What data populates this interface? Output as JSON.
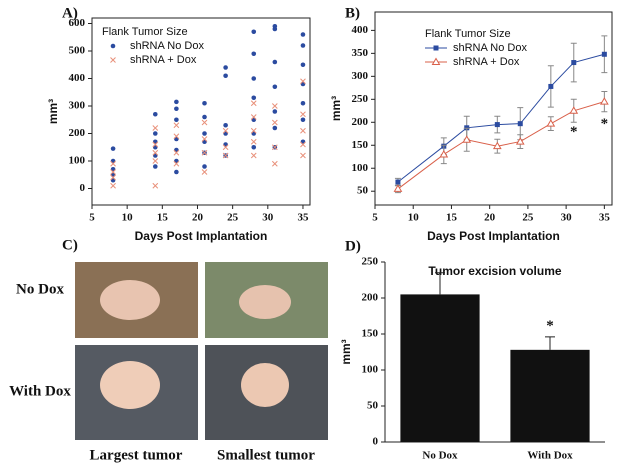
{
  "chart_data": [
    {
      "type": "scatter",
      "label": "A)",
      "xlabel": "Days Post Implantation",
      "ylabel": "mm³",
      "xlim": [
        5,
        36
      ],
      "xticks": [
        5,
        10,
        15,
        20,
        25,
        30,
        35
      ],
      "ylim": [
        -60,
        620
      ],
      "yticks": [
        0,
        100,
        200,
        300,
        400,
        500,
        600
      ],
      "legend": "upper left",
      "legend_title": "Flank Tumor Size",
      "series": [
        {
          "name": "shRNA No Dox",
          "color": "#2b4ba0",
          "marker": "circle",
          "x": [
            8,
            8,
            8,
            8,
            8,
            14,
            14,
            14,
            14,
            14,
            14,
            17,
            17,
            17,
            17,
            17,
            17,
            17,
            21,
            21,
            21,
            21,
            21,
            21,
            24,
            24,
            24,
            24,
            24,
            24,
            28,
            28,
            28,
            28,
            28,
            28,
            28,
            31,
            31,
            31,
            31,
            31,
            31,
            31,
            35,
            35,
            35,
            35,
            35,
            35,
            35
          ],
          "values": [
            145,
            100,
            70,
            50,
            30,
            270,
            200,
            170,
            150,
            120,
            80,
            315,
            290,
            250,
            180,
            140,
            100,
            60,
            310,
            260,
            200,
            170,
            130,
            80,
            440,
            410,
            230,
            200,
            160,
            120,
            570,
            490,
            400,
            330,
            250,
            200,
            150,
            590,
            580,
            460,
            370,
            280,
            220,
            150,
            560,
            520,
            450,
            380,
            310,
            250,
            170
          ]
        },
        {
          "name": "shRNA + Dox",
          "color": "#e8907a",
          "marker": "x",
          "x": [
            8,
            8,
            8,
            8,
            14,
            14,
            14,
            14,
            14,
            17,
            17,
            17,
            17,
            21,
            21,
            21,
            21,
            24,
            24,
            24,
            28,
            28,
            28,
            28,
            28,
            31,
            31,
            31,
            31,
            35,
            35,
            35,
            35,
            35
          ],
          "values": [
            90,
            60,
            40,
            10,
            220,
            160,
            130,
            100,
            10,
            230,
            190,
            130,
            90,
            240,
            180,
            130,
            60,
            210,
            150,
            120,
            310,
            260,
            210,
            170,
            120,
            300,
            240,
            150,
            90,
            390,
            270,
            210,
            160,
            120
          ]
        }
      ]
    },
    {
      "type": "line",
      "label": "B)",
      "xlabel": "Days Post Implantation",
      "ylabel": "mm³",
      "xlim": [
        5,
        36
      ],
      "xticks": [
        5,
        10,
        15,
        20,
        25,
        30,
        35
      ],
      "ylim": [
        20,
        440
      ],
      "yticks": [
        50,
        100,
        150,
        200,
        250,
        300,
        350,
        400
      ],
      "legend": "upper left",
      "legend_title": "Flank Tumor Size",
      "x": [
        8,
        14,
        17,
        21,
        24,
        28,
        31,
        35
      ],
      "series": [
        {
          "name": "shRNA No Dox",
          "color": "#2b4ba0",
          "marker": "square",
          "values": [
            70,
            148,
            188,
            195,
            197,
            278,
            330,
            348
          ],
          "errors": [
            8,
            18,
            25,
            18,
            35,
            45,
            42,
            40
          ]
        },
        {
          "name": "shRNA + Dox",
          "color": "#d9604a",
          "marker": "triangle",
          "values": [
            55,
            130,
            162,
            148,
            158,
            197,
            225,
            245
          ],
          "errors": [
            8,
            20,
            25,
            15,
            15,
            15,
            25,
            22
          ]
        }
      ],
      "annotations": [
        {
          "text": "*",
          "x": 31,
          "y": 178
        },
        {
          "text": "*",
          "x": 35,
          "y": 195
        }
      ]
    },
    {
      "type": "bar",
      "label": "D)",
      "title": "Tumor excision volume",
      "ylabel": "mm³",
      "color": "#111111",
      "categories": [
        "No Dox",
        "With Dox"
      ],
      "values": [
        205,
        128
      ],
      "errors": [
        30,
        18
      ],
      "ylim": [
        0,
        250
      ],
      "yticks": [
        0,
        50,
        100,
        150,
        200,
        250
      ],
      "annotations": [
        {
          "text": "*",
          "x": 1,
          "y": 160
        }
      ]
    }
  ],
  "panel_c": {
    "label": "C)",
    "rows": [
      "No Dox",
      "With Dox"
    ],
    "columns": [
      "Largest tumor",
      "Smallest tumor"
    ]
  }
}
